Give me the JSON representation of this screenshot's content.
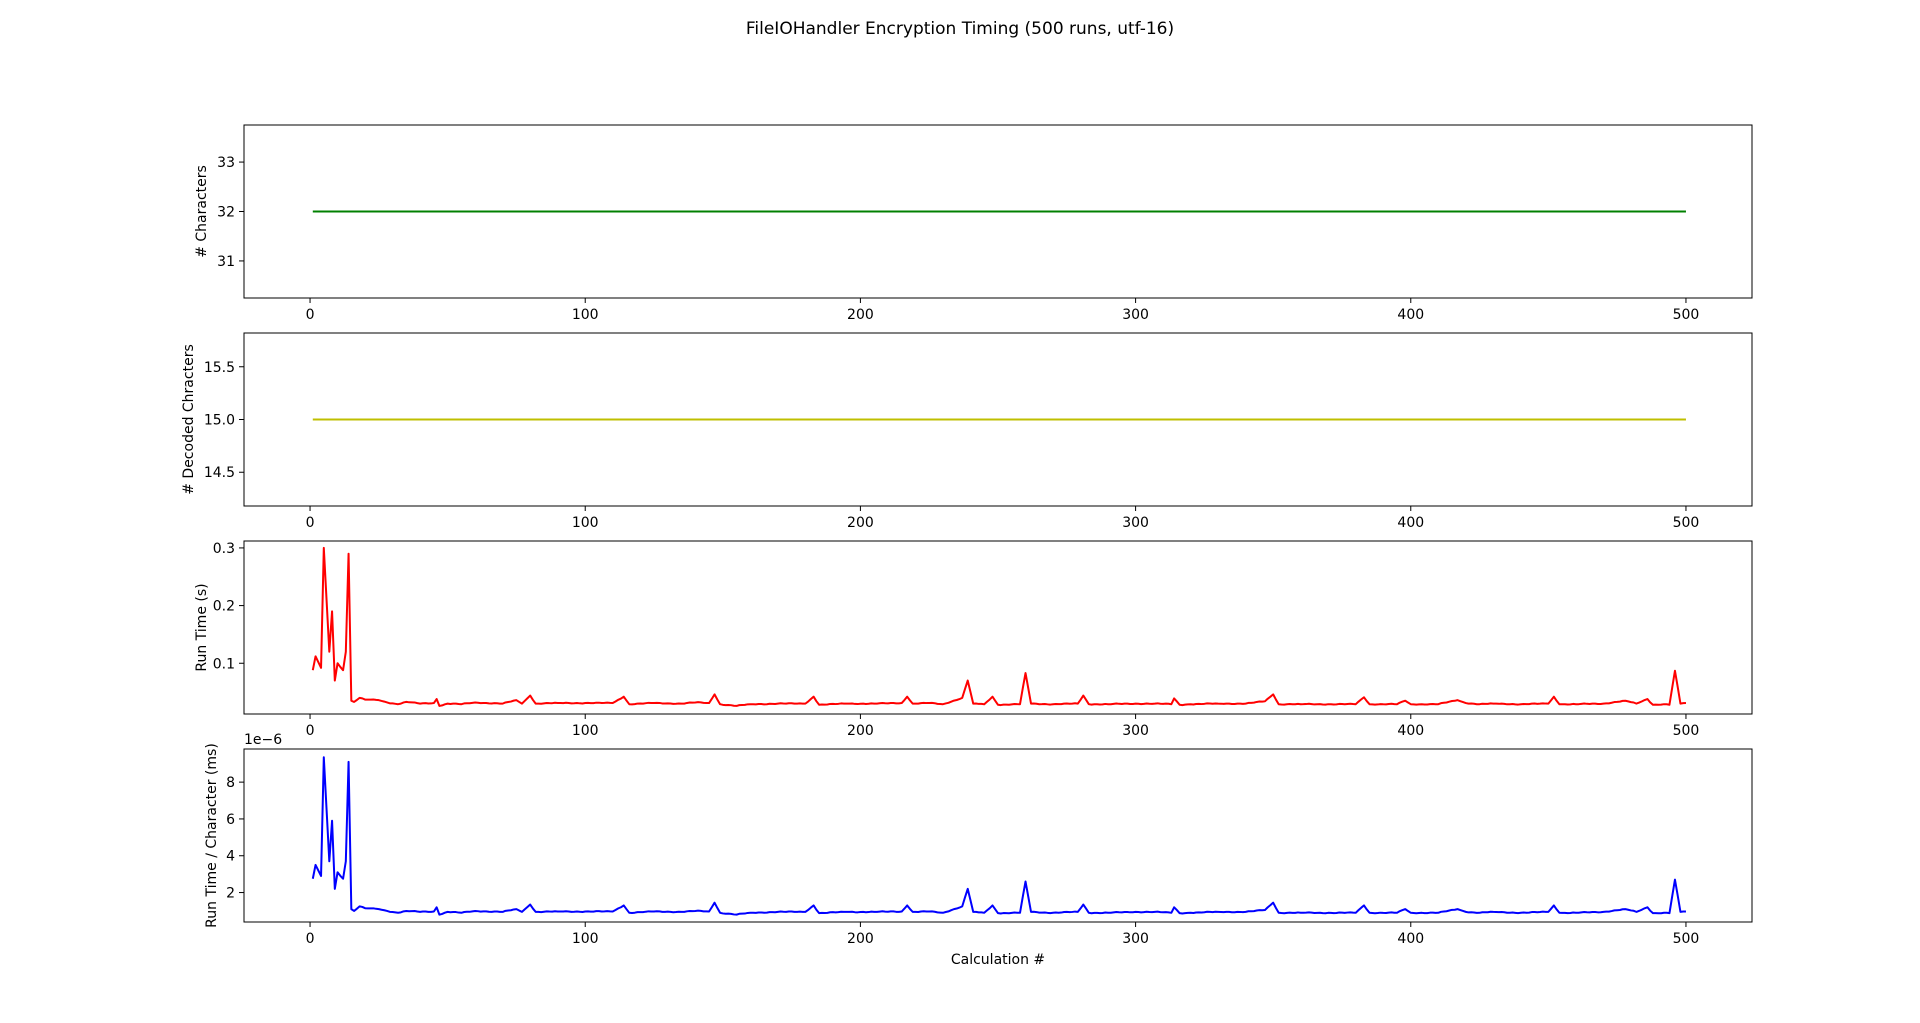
{
  "figure": {
    "title": "FileIOHandler Encryption Timing (500 runs, utf-16)"
  },
  "chart_data": [
    {
      "type": "line",
      "ylabel": "# Characters",
      "xlabel": "",
      "xlim": [
        -24,
        524
      ],
      "ylim": [
        30.25,
        33.75
      ],
      "xticks": [
        0,
        100,
        200,
        300,
        400,
        500
      ],
      "yticks": [
        31,
        32,
        33
      ],
      "grid": false,
      "series": [
        {
          "color": "#008000",
          "constant": 32,
          "x_range": [
            1,
            500
          ]
        }
      ]
    },
    {
      "type": "line",
      "ylabel": "# Decoded Chracters",
      "xlabel": "",
      "xlim": [
        -24,
        524
      ],
      "ylim": [
        14.18,
        15.82
      ],
      "xticks": [
        0,
        100,
        200,
        300,
        400,
        500
      ],
      "yticks": [
        14.5,
        15.0,
        15.5
      ],
      "grid": false,
      "series": [
        {
          "color": "#bfbf00",
          "constant": 15.0,
          "x_range": [
            1,
            500
          ]
        }
      ]
    },
    {
      "type": "line",
      "ylabel": "Run Time (s)",
      "xlabel": "",
      "xlim": [
        -24,
        524
      ],
      "ylim": [
        0.012,
        0.312
      ],
      "xticks": [
        0,
        100,
        200,
        300,
        400,
        500
      ],
      "yticks": [
        0.1,
        0.2,
        0.3
      ],
      "grid": false,
      "baseline": 0.028,
      "series": [
        {
          "color": "#ff0000",
          "points": [
            [
              1,
              0.088
            ],
            [
              2,
              0.112
            ],
            [
              4,
              0.092
            ],
            [
              5,
              0.3
            ],
            [
              7,
              0.12
            ],
            [
              8,
              0.19
            ],
            [
              9,
              0.07
            ],
            [
              10,
              0.1
            ],
            [
              12,
              0.088
            ],
            [
              13,
              0.12
            ],
            [
              14,
              0.29
            ],
            [
              15,
              0.035
            ],
            [
              16,
              0.033
            ],
            [
              18,
              0.04
            ],
            [
              20,
              0.037
            ],
            [
              25,
              0.036
            ],
            [
              28,
              0.032
            ],
            [
              32,
              0.029
            ],
            [
              35,
              0.033
            ],
            [
              40,
              0.03
            ],
            [
              45,
              0.031
            ],
            [
              46,
              0.038
            ],
            [
              47,
              0.026
            ],
            [
              50,
              0.03
            ],
            [
              55,
              0.029
            ],
            [
              60,
              0.032
            ],
            [
              70,
              0.03
            ],
            [
              75,
              0.036
            ],
            [
              77,
              0.03
            ],
            [
              80,
              0.044
            ],
            [
              82,
              0.03
            ],
            [
              90,
              0.031
            ],
            [
              100,
              0.031
            ],
            [
              110,
              0.031
            ],
            [
              114,
              0.042
            ],
            [
              116,
              0.029
            ],
            [
              125,
              0.031
            ],
            [
              135,
              0.03
            ],
            [
              140,
              0.032
            ],
            [
              145,
              0.031
            ],
            [
              147,
              0.046
            ],
            [
              149,
              0.029
            ],
            [
              155,
              0.026
            ],
            [
              160,
              0.029
            ],
            [
              170,
              0.03
            ],
            [
              180,
              0.03
            ],
            [
              183,
              0.042
            ],
            [
              185,
              0.028
            ],
            [
              195,
              0.03
            ],
            [
              205,
              0.03
            ],
            [
              215,
              0.031
            ],
            [
              217,
              0.042
            ],
            [
              219,
              0.03
            ],
            [
              225,
              0.031
            ],
            [
              230,
              0.029
            ],
            [
              237,
              0.04
            ],
            [
              239,
              0.07
            ],
            [
              241,
              0.03
            ],
            [
              245,
              0.029
            ],
            [
              248,
              0.042
            ],
            [
              250,
              0.028
            ],
            [
              258,
              0.029
            ],
            [
              260,
              0.083
            ],
            [
              262,
              0.03
            ],
            [
              270,
              0.029
            ],
            [
              279,
              0.03
            ],
            [
              281,
              0.044
            ],
            [
              283,
              0.029
            ],
            [
              290,
              0.029
            ],
            [
              300,
              0.03
            ],
            [
              307,
              0.03
            ],
            [
              313,
              0.029
            ],
            [
              314,
              0.039
            ],
            [
              316,
              0.028
            ],
            [
              320,
              0.029
            ],
            [
              330,
              0.03
            ],
            [
              340,
              0.03
            ],
            [
              347,
              0.034
            ],
            [
              350,
              0.046
            ],
            [
              352,
              0.029
            ],
            [
              360,
              0.029
            ],
            [
              370,
              0.029
            ],
            [
              380,
              0.029
            ],
            [
              383,
              0.041
            ],
            [
              385,
              0.029
            ],
            [
              395,
              0.029
            ],
            [
              398,
              0.035
            ],
            [
              400,
              0.029
            ],
            [
              410,
              0.029
            ],
            [
              417,
              0.036
            ],
            [
              420,
              0.031
            ],
            [
              425,
              0.029
            ],
            [
              430,
              0.03
            ],
            [
              440,
              0.029
            ],
            [
              450,
              0.03
            ],
            [
              452,
              0.042
            ],
            [
              454,
              0.029
            ],
            [
              460,
              0.029
            ],
            [
              470,
              0.03
            ],
            [
              478,
              0.035
            ],
            [
              482,
              0.03
            ],
            [
              486,
              0.038
            ],
            [
              488,
              0.028
            ],
            [
              492,
              0.029
            ],
            [
              494,
              0.028
            ],
            [
              496,
              0.087
            ],
            [
              498,
              0.03
            ],
            [
              500,
              0.031
            ]
          ]
        }
      ]
    },
    {
      "type": "line",
      "ylabel": "Run Time / Character (ms)",
      "xlabel": "Calculation #",
      "offset_label": "1e−6",
      "xlim": [
        -24,
        524
      ],
      "ylim": [
        0.4,
        9.8
      ],
      "xticks": [
        0,
        100,
        200,
        300,
        400,
        500
      ],
      "yticks": [
        2,
        4,
        6,
        8
      ],
      "grid": false,
      "baseline": 0.875,
      "series": [
        {
          "color": "#0000ff",
          "points": [
            [
              1,
              2.75
            ],
            [
              2,
              3.5
            ],
            [
              4,
              2.9
            ],
            [
              5,
              9.35
            ],
            [
              7,
              3.7
            ],
            [
              8,
              5.9
            ],
            [
              9,
              2.2
            ],
            [
              10,
              3.1
            ],
            [
              12,
              2.75
            ],
            [
              13,
              3.7
            ],
            [
              14,
              9.1
            ],
            [
              15,
              1.1
            ],
            [
              16,
              1.0
            ],
            [
              18,
              1.25
            ],
            [
              20,
              1.15
            ],
            [
              25,
              1.1
            ],
            [
              28,
              1.0
            ],
            [
              32,
              0.9
            ],
            [
              35,
              1.0
            ],
            [
              40,
              0.95
            ],
            [
              45,
              0.97
            ],
            [
              46,
              1.2
            ],
            [
              47,
              0.8
            ],
            [
              50,
              0.95
            ],
            [
              55,
              0.9
            ],
            [
              60,
              1.0
            ],
            [
              70,
              0.95
            ],
            [
              75,
              1.1
            ],
            [
              77,
              0.95
            ],
            [
              80,
              1.35
            ],
            [
              82,
              0.95
            ],
            [
              90,
              0.97
            ],
            [
              100,
              0.97
            ],
            [
              110,
              0.97
            ],
            [
              114,
              1.3
            ],
            [
              116,
              0.9
            ],
            [
              125,
              0.97
            ],
            [
              135,
              0.95
            ],
            [
              140,
              1.0
            ],
            [
              145,
              0.97
            ],
            [
              147,
              1.45
            ],
            [
              149,
              0.9
            ],
            [
              155,
              0.8
            ],
            [
              160,
              0.9
            ],
            [
              170,
              0.95
            ],
            [
              180,
              0.95
            ],
            [
              183,
              1.3
            ],
            [
              185,
              0.88
            ],
            [
              195,
              0.95
            ],
            [
              205,
              0.95
            ],
            [
              215,
              0.97
            ],
            [
              217,
              1.3
            ],
            [
              219,
              0.95
            ],
            [
              225,
              0.97
            ],
            [
              230,
              0.9
            ],
            [
              237,
              1.25
            ],
            [
              239,
              2.2
            ],
            [
              241,
              0.95
            ],
            [
              245,
              0.9
            ],
            [
              248,
              1.3
            ],
            [
              250,
              0.88
            ],
            [
              258,
              0.9
            ],
            [
              260,
              2.6
            ],
            [
              262,
              0.95
            ],
            [
              270,
              0.9
            ],
            [
              279,
              0.95
            ],
            [
              281,
              1.35
            ],
            [
              283,
              0.9
            ],
            [
              290,
              0.9
            ],
            [
              300,
              0.95
            ],
            [
              307,
              0.95
            ],
            [
              313,
              0.9
            ],
            [
              314,
              1.2
            ],
            [
              316,
              0.88
            ],
            [
              320,
              0.9
            ],
            [
              330,
              0.95
            ],
            [
              340,
              0.95
            ],
            [
              347,
              1.05
            ],
            [
              350,
              1.45
            ],
            [
              352,
              0.9
            ],
            [
              360,
              0.9
            ],
            [
              370,
              0.9
            ],
            [
              380,
              0.9
            ],
            [
              383,
              1.3
            ],
            [
              385,
              0.9
            ],
            [
              395,
              0.9
            ],
            [
              398,
              1.1
            ],
            [
              400,
              0.9
            ],
            [
              410,
              0.9
            ],
            [
              417,
              1.1
            ],
            [
              420,
              0.95
            ],
            [
              425,
              0.9
            ],
            [
              430,
              0.95
            ],
            [
              440,
              0.9
            ],
            [
              450,
              0.95
            ],
            [
              452,
              1.3
            ],
            [
              454,
              0.9
            ],
            [
              460,
              0.9
            ],
            [
              470,
              0.95
            ],
            [
              478,
              1.1
            ],
            [
              482,
              0.95
            ],
            [
              486,
              1.2
            ],
            [
              488,
              0.88
            ],
            [
              492,
              0.9
            ],
            [
              494,
              0.88
            ],
            [
              496,
              2.7
            ],
            [
              498,
              0.95
            ],
            [
              500,
              0.97
            ]
          ]
        }
      ]
    }
  ]
}
